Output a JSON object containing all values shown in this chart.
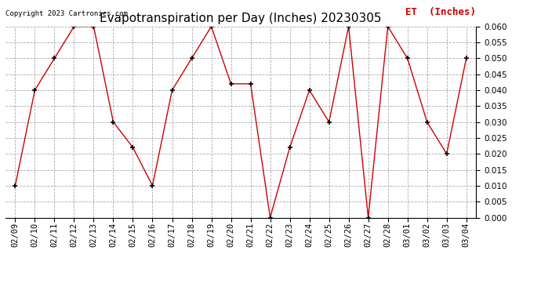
{
  "title": "Evapotranspiration per Day (Inches) 20230305",
  "legend_label": "ET  (Inches)",
  "copyright_text": "Copyright 2023 Cartronics.com",
  "dates": [
    "02/09",
    "02/10",
    "02/11",
    "02/12",
    "02/13",
    "02/14",
    "02/15",
    "02/16",
    "02/17",
    "02/18",
    "02/19",
    "02/20",
    "02/21",
    "02/22",
    "02/23",
    "02/24",
    "02/25",
    "02/26",
    "02/27",
    "02/28",
    "03/01",
    "03/02",
    "03/03",
    "03/04"
  ],
  "values": [
    0.01,
    0.04,
    0.05,
    0.06,
    0.06,
    0.03,
    0.022,
    0.01,
    0.04,
    0.05,
    0.06,
    0.042,
    0.042,
    0.0,
    0.022,
    0.04,
    0.03,
    0.06,
    0.0,
    0.06,
    0.05,
    0.03,
    0.02,
    0.05
  ],
  "line_color": "#cc0000",
  "marker": "+",
  "ylim": [
    0.0,
    0.06
  ],
  "yticks": [
    0.0,
    0.005,
    0.01,
    0.015,
    0.02,
    0.025,
    0.03,
    0.035,
    0.04,
    0.045,
    0.05,
    0.055,
    0.06
  ],
  "grid_color": "#aaaaaa",
  "bg_color": "#ffffff",
  "title_fontsize": 11,
  "axis_fontsize": 7.5,
  "legend_color": "#cc0000",
  "legend_fontsize": 9,
  "copyright_color": "#000000",
  "copyright_fontsize": 6.5
}
